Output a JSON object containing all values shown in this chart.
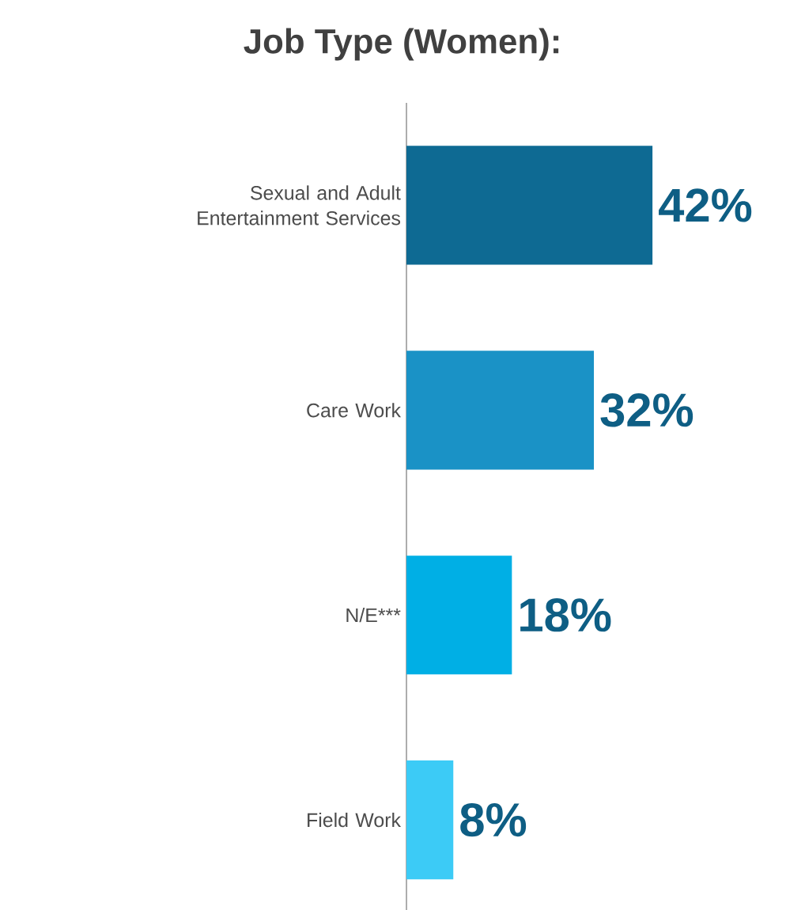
{
  "chart_data": {
    "type": "bar",
    "orientation": "horizontal",
    "title": "Job Type (Women):",
    "categories": [
      "Sexual and Adult Entertainment Services",
      "Care Work",
      "N/E***",
      "Field Work"
    ],
    "values": [
      42,
      32,
      18,
      8
    ],
    "colors": [
      "#0e6a93",
      "#1a92c6",
      "#00afe5",
      "#3ccbf6"
    ],
    "value_labels": [
      "42%",
      "32%",
      "18%",
      "8%"
    ]
  }
}
